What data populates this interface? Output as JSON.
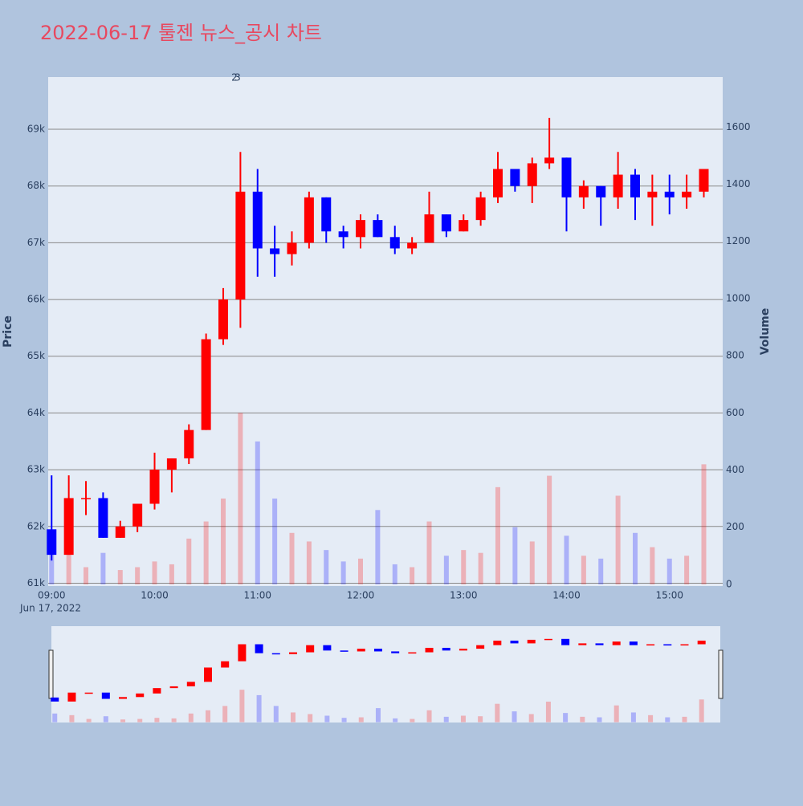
{
  "chart_data": {
    "type": "candlestick",
    "title": "2022-06-17 툴젠 뉴스_공시 차트",
    "x_date_label": "Jun 17, 2022",
    "y_label": "Price",
    "y2_label": "Volume",
    "up_color": "#ff0000",
    "down_color": "#0000ff",
    "annotations": [
      "2",
      "3"
    ],
    "xlim": [
      "08:58",
      "15:31"
    ],
    "xticks": [
      "09:00",
      "10:00",
      "11:00",
      "12:00",
      "13:00",
      "14:00",
      "15:00"
    ],
    "ylim": [
      60950,
      69920
    ],
    "yticks": [
      {
        "value": 61000,
        "label": "61k"
      },
      {
        "value": 62000,
        "label": "62k"
      },
      {
        "value": 63000,
        "label": "63k"
      },
      {
        "value": 64000,
        "label": "64k"
      },
      {
        "value": 65000,
        "label": "65k"
      },
      {
        "value": 66000,
        "label": "66k"
      },
      {
        "value": 67000,
        "label": "67k"
      },
      {
        "value": 68000,
        "label": "68k"
      },
      {
        "value": 69000,
        "label": "69k"
      }
    ],
    "y2lim": [
      -6,
      1775
    ],
    "y2ticks": [
      0,
      200,
      400,
      600,
      800,
      1000,
      1200,
      1400,
      1600
    ],
    "x": [
      "09:00",
      "09:10",
      "09:20",
      "09:30",
      "09:40",
      "09:50",
      "10:00",
      "10:10",
      "10:20",
      "10:30",
      "10:40",
      "10:50",
      "11:00",
      "11:10",
      "11:20",
      "11:30",
      "11:40",
      "11:50",
      "12:00",
      "12:10",
      "12:20",
      "12:30",
      "12:40",
      "12:50",
      "13:00",
      "13:10",
      "13:20",
      "13:30",
      "13:40",
      "13:50",
      "14:00",
      "14:10",
      "14:20",
      "14:30",
      "14:40",
      "14:50",
      "15:00",
      "15:10",
      "15:20"
    ],
    "open": [
      61950,
      61500,
      62500,
      62500,
      61800,
      62000,
      62400,
      63000,
      63200,
      63700,
      65300,
      66000,
      67900,
      66900,
      66800,
      67000,
      67800,
      67200,
      67100,
      67400,
      67100,
      66900,
      67000,
      67500,
      67200,
      67400,
      67800,
      68300,
      68000,
      68400,
      68500,
      67800,
      68000,
      67800,
      68200,
      67800,
      67900,
      67800,
      67900
    ],
    "high": [
      62900,
      62900,
      62800,
      62600,
      62100,
      62400,
      63300,
      63200,
      63800,
      65400,
      66200,
      68600,
      68300,
      67300,
      67200,
      67900,
      67800,
      67300,
      67500,
      67500,
      67300,
      67100,
      67900,
      67500,
      67500,
      67900,
      68600,
      68300,
      68500,
      69200,
      68500,
      68100,
      68000,
      68600,
      68300,
      68200,
      68200,
      68200,
      68300
    ],
    "low": [
      61400,
      61500,
      62200,
      61800,
      61800,
      61900,
      62300,
      62600,
      63100,
      63700,
      65200,
      65500,
      66400,
      66400,
      66600,
      66900,
      67000,
      66900,
      66900,
      67100,
      66800,
      66800,
      67000,
      67100,
      67200,
      67300,
      67700,
      67900,
      67700,
      68300,
      67200,
      67600,
      67300,
      67600,
      67400,
      67300,
      67500,
      67600,
      67800
    ],
    "close": [
      61500,
      62500,
      62500,
      61800,
      62000,
      62400,
      63000,
      63200,
      63700,
      65300,
      66000,
      67900,
      66900,
      66800,
      67000,
      67800,
      67200,
      67100,
      67400,
      67100,
      66900,
      67000,
      67500,
      67200,
      67400,
      67800,
      68300,
      68000,
      68400,
      68500,
      67800,
      68000,
      67800,
      68200,
      67800,
      67900,
      67800,
      67900,
      68300
    ],
    "volume": [
      160,
      130,
      60,
      110,
      50,
      60,
      80,
      70,
      160,
      220,
      300,
      600,
      500,
      300,
      180,
      150,
      120,
      80,
      90,
      260,
      70,
      60,
      220,
      100,
      120,
      110,
      340,
      200,
      150,
      380,
      170,
      100,
      90,
      310,
      180,
      130,
      90,
      100,
      420
    ]
  }
}
